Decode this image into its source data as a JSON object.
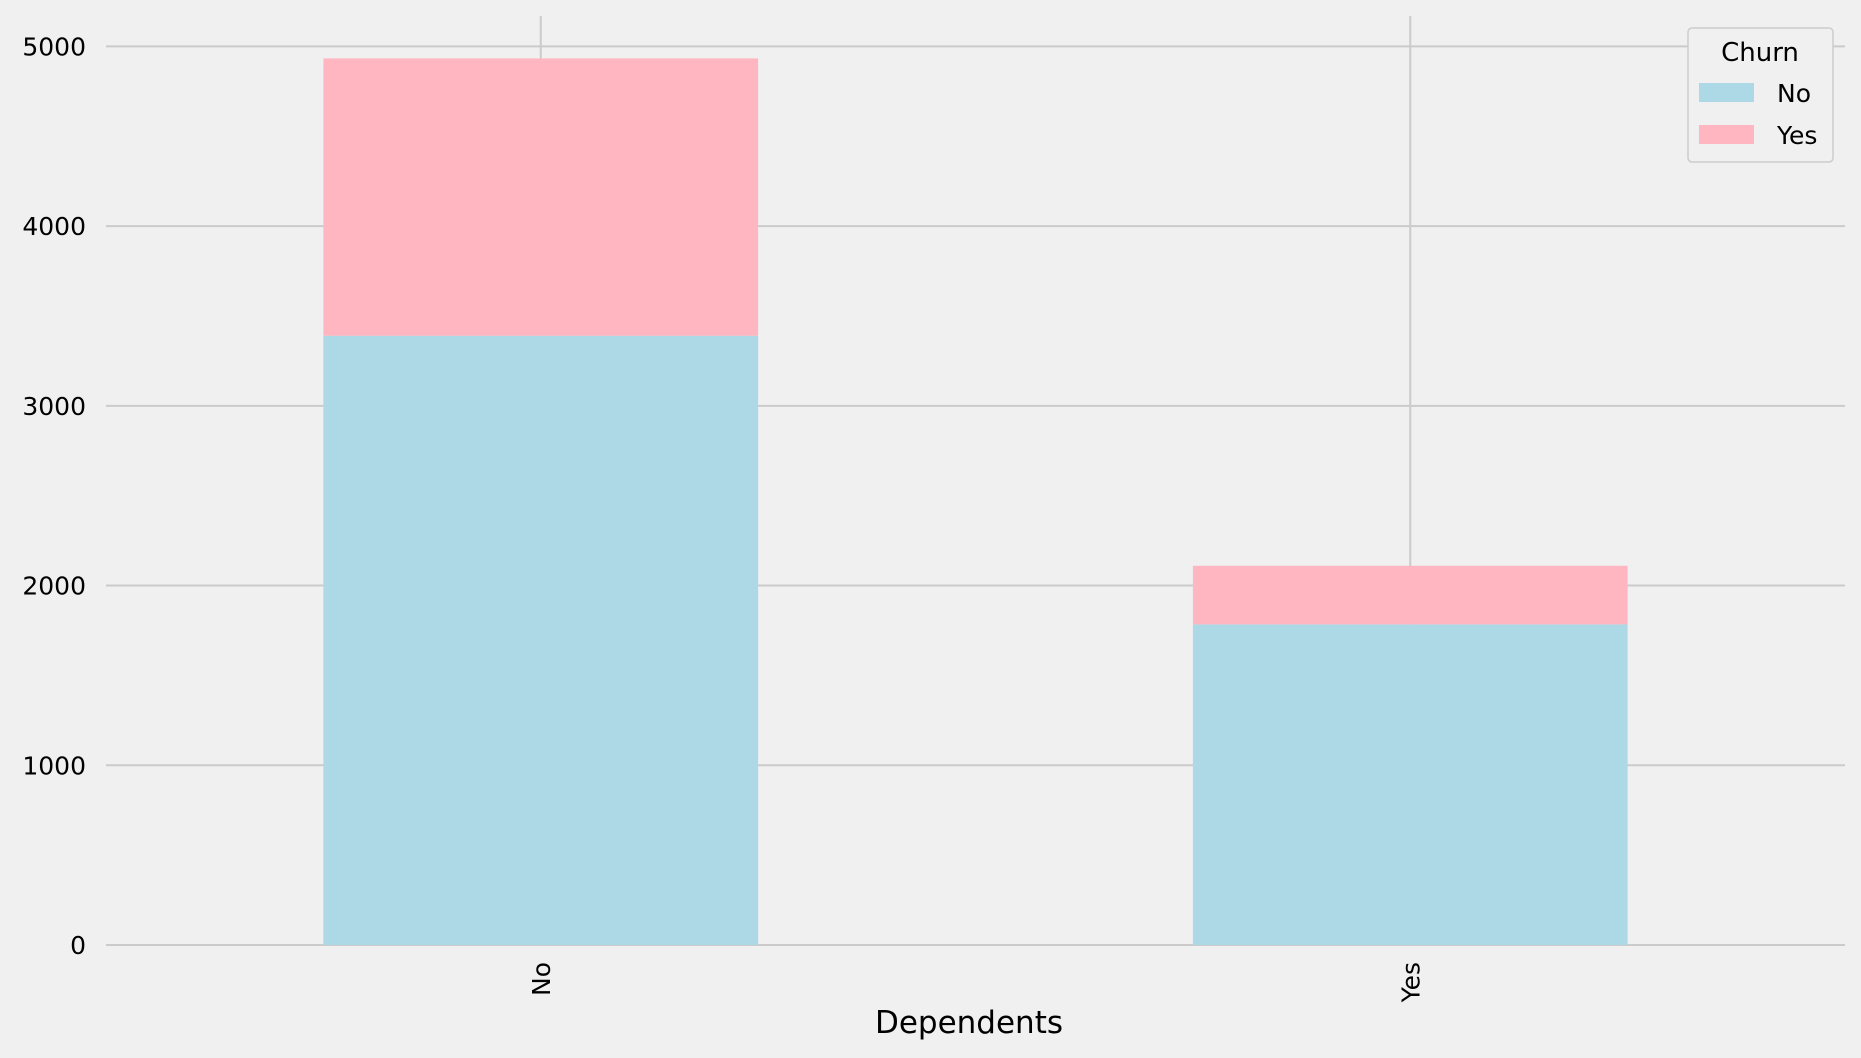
{
  "chart_data": {
    "type": "bar",
    "stacked": true,
    "categories": [
      "No",
      "Yes"
    ],
    "series": [
      {
        "name": "No",
        "values": [
          3390,
          1784
        ],
        "color": "#add8e6"
      },
      {
        "name": "Yes",
        "values": [
          1543,
          326
        ],
        "color": "#ffb6c1"
      }
    ],
    "xlabel": "Dependents",
    "ylabel": "",
    "ylim": [
      0,
      5169
    ],
    "yticks": [
      0,
      1000,
      2000,
      3000,
      4000,
      5000
    ],
    "grid": true,
    "legend": {
      "title": "Churn",
      "position": "top-right"
    },
    "background": "#f0f0f0",
    "grid_color": "#cbcbcb"
  }
}
